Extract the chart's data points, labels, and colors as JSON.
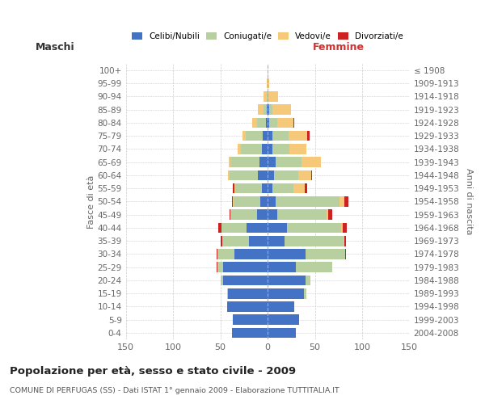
{
  "age_groups": [
    "0-4",
    "5-9",
    "10-14",
    "15-19",
    "20-24",
    "25-29",
    "30-34",
    "35-39",
    "40-44",
    "45-49",
    "50-54",
    "55-59",
    "60-64",
    "65-69",
    "70-74",
    "75-79",
    "80-84",
    "85-89",
    "90-94",
    "95-99",
    "100+"
  ],
  "birth_years": [
    "2004-2008",
    "1999-2003",
    "1994-1998",
    "1989-1993",
    "1984-1988",
    "1979-1983",
    "1974-1978",
    "1969-1973",
    "1964-1968",
    "1959-1963",
    "1954-1958",
    "1949-1953",
    "1944-1948",
    "1939-1943",
    "1934-1938",
    "1929-1933",
    "1924-1928",
    "1919-1923",
    "1914-1918",
    "1909-1913",
    "≤ 1908"
  ],
  "maschi_celibi": [
    38,
    37,
    43,
    42,
    47,
    47,
    35,
    20,
    22,
    11,
    8,
    6,
    10,
    9,
    6,
    5,
    2,
    1,
    0,
    0,
    0
  ],
  "maschi_coniugati": [
    0,
    0,
    0,
    1,
    3,
    5,
    18,
    28,
    27,
    28,
    28,
    28,
    30,
    30,
    22,
    18,
    9,
    3,
    1,
    0,
    0
  ],
  "maschi_vedovi": [
    0,
    0,
    0,
    0,
    0,
    1,
    0,
    0,
    0,
    0,
    1,
    1,
    2,
    2,
    4,
    4,
    5,
    6,
    3,
    1,
    0
  ],
  "maschi_divorziati": [
    0,
    0,
    0,
    0,
    0,
    1,
    1,
    2,
    3,
    1,
    1,
    2,
    0,
    0,
    0,
    0,
    0,
    0,
    0,
    0,
    0
  ],
  "femmine_nubili": [
    30,
    33,
    28,
    38,
    40,
    30,
    40,
    18,
    20,
    10,
    8,
    5,
    7,
    8,
    5,
    5,
    2,
    2,
    0,
    0,
    0
  ],
  "femmine_coniugate": [
    0,
    0,
    0,
    3,
    5,
    38,
    42,
    62,
    58,
    52,
    68,
    22,
    25,
    28,
    18,
    17,
    8,
    3,
    1,
    0,
    0
  ],
  "femmine_vedove": [
    0,
    0,
    0,
    0,
    0,
    0,
    0,
    1,
    1,
    2,
    5,
    12,
    14,
    20,
    18,
    20,
    17,
    20,
    10,
    2,
    0
  ],
  "femmine_divorziate": [
    0,
    0,
    0,
    0,
    0,
    0,
    1,
    2,
    5,
    4,
    4,
    3,
    1,
    0,
    0,
    2,
    1,
    0,
    0,
    0,
    0
  ],
  "color_celibi": "#4472c4",
  "color_coniugati": "#b8cfa0",
  "color_vedovi": "#f5c87a",
  "color_divorziati": "#cc2222",
  "legend_labels": [
    "Celibi/Nubili",
    "Coniugati/e",
    "Vedovi/e",
    "Divorziati/e"
  ],
  "title": "Popolazione per età, sesso e stato civile - 2009",
  "subtitle": "COMUNE DI PERFUGAS (SS) - Dati ISTAT 1° gennaio 2009 - Elaborazione TUTTITALIA.IT",
  "label_maschi": "Maschi",
  "label_femmine": "Femmine",
  "ylabel_left": "Fasce di età",
  "ylabel_right": "Anni di nascita",
  "xlim": 150,
  "bg_color": "#ffffff",
  "grid_color": "#cccccc"
}
